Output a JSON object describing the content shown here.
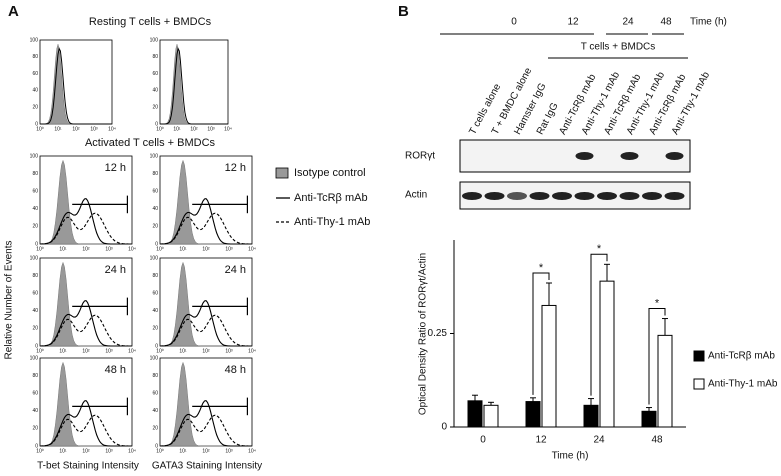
{
  "panel_a": {
    "label": "A",
    "resting_title": "Resting T cells + BMDCs",
    "activated_title": "Activated T cells + BMDCs",
    "y_label": "Relative Number of Events",
    "x_labels": [
      "T-bet Staining Intensity",
      "GATA3 Staining Intensity"
    ],
    "hist_x_ticks": [
      "10⁰",
      "10¹",
      "10²",
      "10³",
      "10⁴"
    ],
    "hist_y_ticks": [
      "0",
      "20",
      "40",
      "60",
      "80",
      "100"
    ],
    "timepoints": [
      "12 h",
      "24 h",
      "48 h"
    ],
    "legend": [
      "Isotype control",
      "Anti-TcRβ mAb",
      "Anti-Thy-1 mAb"
    ]
  },
  "panel_b": {
    "label": "B",
    "time_header": [
      "0",
      "12",
      "24",
      "48"
    ],
    "time_unit": "Time (h)",
    "group_label": "T cells + BMDCs",
    "lanes": [
      "T cells alone",
      "T + BMDC alone",
      "Hamster IgG",
      "Rat IgG",
      "Anti-TcRβ mAb",
      "Anti-Thy-1 mAb",
      "Anti-TcRβ mAb",
      "Anti-Thy-1 mAb",
      "Anti-TcRβ mAb",
      "Anti-Thy-1 mAb"
    ],
    "blot_rows": [
      "RORγt",
      "Actin"
    ]
  },
  "chart_data": {
    "type": "bar",
    "y_label": "Optical  Density Ratio of RORγt/Actin",
    "x_label": "Time (h)",
    "categories": [
      "0",
      "12",
      "24",
      "48"
    ],
    "series": [
      {
        "name": "Anti-TcRβ mAb",
        "color": "#000000",
        "values": [
          0.07,
          0.068,
          0.058,
          0.042
        ],
        "errors": [
          0.015,
          0.01,
          0.018,
          0.01
        ]
      },
      {
        "name": "Anti-Thy-1 mAb",
        "color": "#ffffff",
        "values": [
          0.058,
          0.325,
          0.39,
          0.245
        ],
        "errors": [
          0.008,
          0.06,
          0.045,
          0.045
        ]
      }
    ],
    "significance": [
      null,
      "*",
      "*",
      "*"
    ],
    "ylim": [
      0,
      0.5
    ],
    "yticks": [
      0,
      0.25
    ]
  }
}
